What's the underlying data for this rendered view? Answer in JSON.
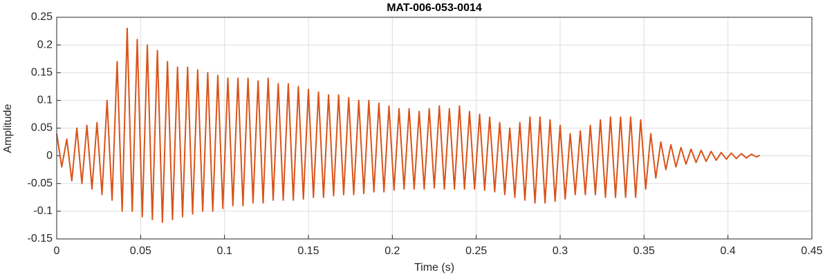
{
  "chart_data": {
    "type": "line",
    "title": "MAT-006-053-0014",
    "x_label": "Time (s)",
    "y_label": "Amplitude",
    "color": "#D95319",
    "grid": true,
    "xlim": [
      0,
      0.45
    ],
    "xticks": [
      0,
      0.05,
      0.1,
      0.15,
      0.2,
      0.25,
      0.3,
      0.35,
      0.4,
      0.45
    ],
    "ylim": [
      -0.15,
      0.25
    ],
    "yticks": [
      -0.15,
      -0.1,
      -0.05,
      0,
      0.05,
      0.1,
      0.15,
      0.2,
      0.25
    ],
    "x": [
      0,
      0.003,
      0.006,
      0.009,
      0.012,
      0.015,
      0.018,
      0.021,
      0.024,
      0.027,
      0.03,
      0.033,
      0.036,
      0.039,
      0.042,
      0.045,
      0.048,
      0.051,
      0.054,
      0.057,
      0.06,
      0.063,
      0.066,
      0.069,
      0.072,
      0.075,
      0.078,
      0.081,
      0.084,
      0.087,
      0.09,
      0.093,
      0.096,
      0.099,
      0.102,
      0.105,
      0.108,
      0.111,
      0.114,
      0.117,
      0.12,
      0.123,
      0.126,
      0.129,
      0.132,
      0.135,
      0.138,
      0.141,
      0.144,
      0.147,
      0.15,
      0.153,
      0.156,
      0.159,
      0.162,
      0.165,
      0.168,
      0.171,
      0.174,
      0.177,
      0.18,
      0.183,
      0.186,
      0.189,
      0.192,
      0.195,
      0.198,
      0.201,
      0.204,
      0.207,
      0.21,
      0.213,
      0.216,
      0.219,
      0.222,
      0.225,
      0.228,
      0.231,
      0.234,
      0.237,
      0.24,
      0.243,
      0.246,
      0.249,
      0.252,
      0.255,
      0.258,
      0.261,
      0.264,
      0.267,
      0.27,
      0.273,
      0.276,
      0.279,
      0.282,
      0.285,
      0.288,
      0.291,
      0.294,
      0.297,
      0.3,
      0.303,
      0.306,
      0.309,
      0.312,
      0.315,
      0.318,
      0.321,
      0.324,
      0.327,
      0.33,
      0.333,
      0.336,
      0.339,
      0.342,
      0.345,
      0.348,
      0.351,
      0.354,
      0.357,
      0.36,
      0.363,
      0.366,
      0.369,
      0.372,
      0.375,
      0.378,
      0.381,
      0.384,
      0.387,
      0.39,
      0.393,
      0.396,
      0.399,
      0.402,
      0.405,
      0.408,
      0.411,
      0.414,
      0.417,
      0.419
    ],
    "values": [
      0.04,
      -0.02,
      0.03,
      -0.045,
      0.05,
      -0.05,
      0.055,
      -0.06,
      0.06,
      -0.07,
      0.1,
      -0.08,
      0.17,
      -0.1,
      0.23,
      -0.1,
      0.21,
      -0.11,
      0.2,
      -0.115,
      0.19,
      -0.12,
      0.17,
      -0.115,
      0.16,
      -0.11,
      0.16,
      -0.105,
      0.155,
      -0.1,
      0.15,
      -0.1,
      0.145,
      -0.095,
      0.14,
      -0.09,
      0.14,
      -0.09,
      0.14,
      -0.085,
      0.135,
      -0.085,
      0.14,
      -0.08,
      0.13,
      -0.08,
      0.13,
      -0.08,
      0.125,
      -0.078,
      0.12,
      -0.075,
      0.115,
      -0.075,
      0.11,
      -0.072,
      0.11,
      -0.07,
      0.105,
      -0.07,
      0.1,
      -0.068,
      0.1,
      -0.065,
      0.095,
      -0.065,
      0.09,
      -0.062,
      0.085,
      -0.06,
      0.085,
      -0.06,
      0.08,
      -0.06,
      0.085,
      -0.058,
      0.09,
      -0.06,
      0.085,
      -0.06,
      0.09,
      -0.06,
      0.08,
      -0.06,
      0.075,
      -0.062,
      0.07,
      -0.065,
      0.06,
      -0.07,
      0.05,
      -0.075,
      0.06,
      -0.08,
      0.07,
      -0.085,
      0.07,
      -0.085,
      0.065,
      -0.082,
      0.055,
      -0.078,
      0.04,
      -0.07,
      0.045,
      -0.07,
      0.055,
      -0.07,
      0.065,
      -0.075,
      0.07,
      -0.075,
      0.07,
      -0.075,
      0.07,
      -0.075,
      0.065,
      -0.06,
      0.04,
      -0.04,
      0.025,
      -0.025,
      0.02,
      -0.02,
      0.015,
      -0.015,
      0.012,
      -0.012,
      0.01,
      -0.01,
      0.008,
      -0.008,
      0.006,
      -0.006,
      0.005,
      -0.005,
      0.004,
      -0.004,
      0.003,
      -0.002,
      0.001
    ]
  }
}
